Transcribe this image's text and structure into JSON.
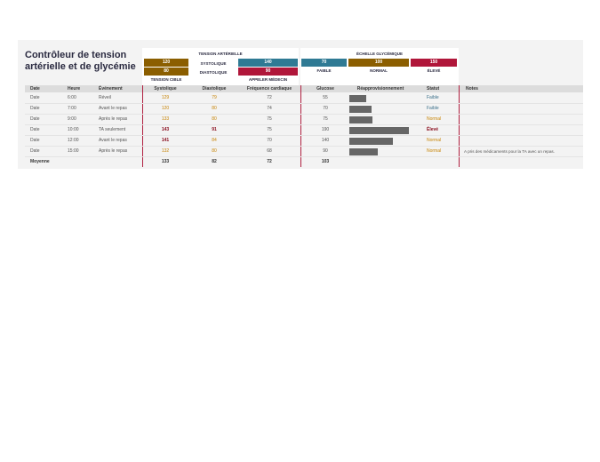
{
  "title": "Contrôleur de tension artérielle et de glycémie",
  "bp": {
    "heading": "TENSION ARTÉRIELLE",
    "target_sys": "120",
    "sys_label": "SYSTOLIQUE",
    "call_sys": "140",
    "target_dia": "80",
    "dia_label": "DIASTOLIQUE",
    "call_dia": "90",
    "target_caption": "TENSION CIBLE",
    "call_caption": "APPELER MÉDECIN"
  },
  "gly": {
    "heading": "ÉCHELLE GLYCÉMIQUE",
    "low": "70",
    "normal": "100",
    "high": "150",
    "low_label": "FAIBLE",
    "normal_label": "NORMAL",
    "high_label": "ÉLEVÉ"
  },
  "colors": {
    "brown": "#8b5e00",
    "teal": "#2f7a94",
    "crimson": "#b0163a",
    "normal": "#c8860a",
    "low": "#3a6f8a",
    "high": "#8b1020"
  },
  "headers": [
    "Date",
    "Heure",
    "Événement",
    "Systolique",
    "Diastolique",
    "Fréquence cardiaque",
    "Glucose",
    "Réapprovisionnement",
    "Statut",
    "Notes"
  ],
  "rows": [
    {
      "date": "Date",
      "heure": "6:00",
      "event": "Réveil",
      "sys": "129",
      "dia": "79",
      "fc": "72",
      "glu": "55",
      "level": 55,
      "statut": "Faible",
      "status": "low",
      "note": "",
      "hot": false
    },
    {
      "date": "Date",
      "heure": "7:00",
      "event": "Avant le repas",
      "sys": "120",
      "dia": "80",
      "fc": "74",
      "glu": "70",
      "level": 70,
      "statut": "Faible",
      "status": "low",
      "note": "",
      "hot": false
    },
    {
      "date": "Date",
      "heure": "9:00",
      "event": "Après le repas",
      "sys": "133",
      "dia": "80",
      "fc": "75",
      "glu": "75",
      "level": 75,
      "statut": "Normal",
      "status": "normal",
      "note": "",
      "hot": false
    },
    {
      "date": "Date",
      "heure": "10:00",
      "event": "TA seulement",
      "sys": "143",
      "dia": "91",
      "fc": "75",
      "glu": "190",
      "level": 190,
      "statut": "Élevé",
      "status": "high",
      "note": "",
      "hot": true
    },
    {
      "date": "Date",
      "heure": "12:00",
      "event": "Avant le repas",
      "sys": "141",
      "dia": "84",
      "fc": "70",
      "glu": "140",
      "level": 140,
      "statut": "Normal",
      "status": "normal",
      "note": "",
      "hot": "sys"
    },
    {
      "date": "Date",
      "heure": "15:00",
      "event": "Après le repas",
      "sys": "132",
      "dia": "80",
      "fc": "68",
      "glu": "90",
      "level": 90,
      "statut": "Normal",
      "status": "normal",
      "note": "A pris des médicaments pour la TA avec un repas.",
      "hot": false
    }
  ],
  "average": {
    "label": "Moyenne",
    "sys": "133",
    "dia": "82",
    "fc": "72",
    "glu": "103"
  }
}
